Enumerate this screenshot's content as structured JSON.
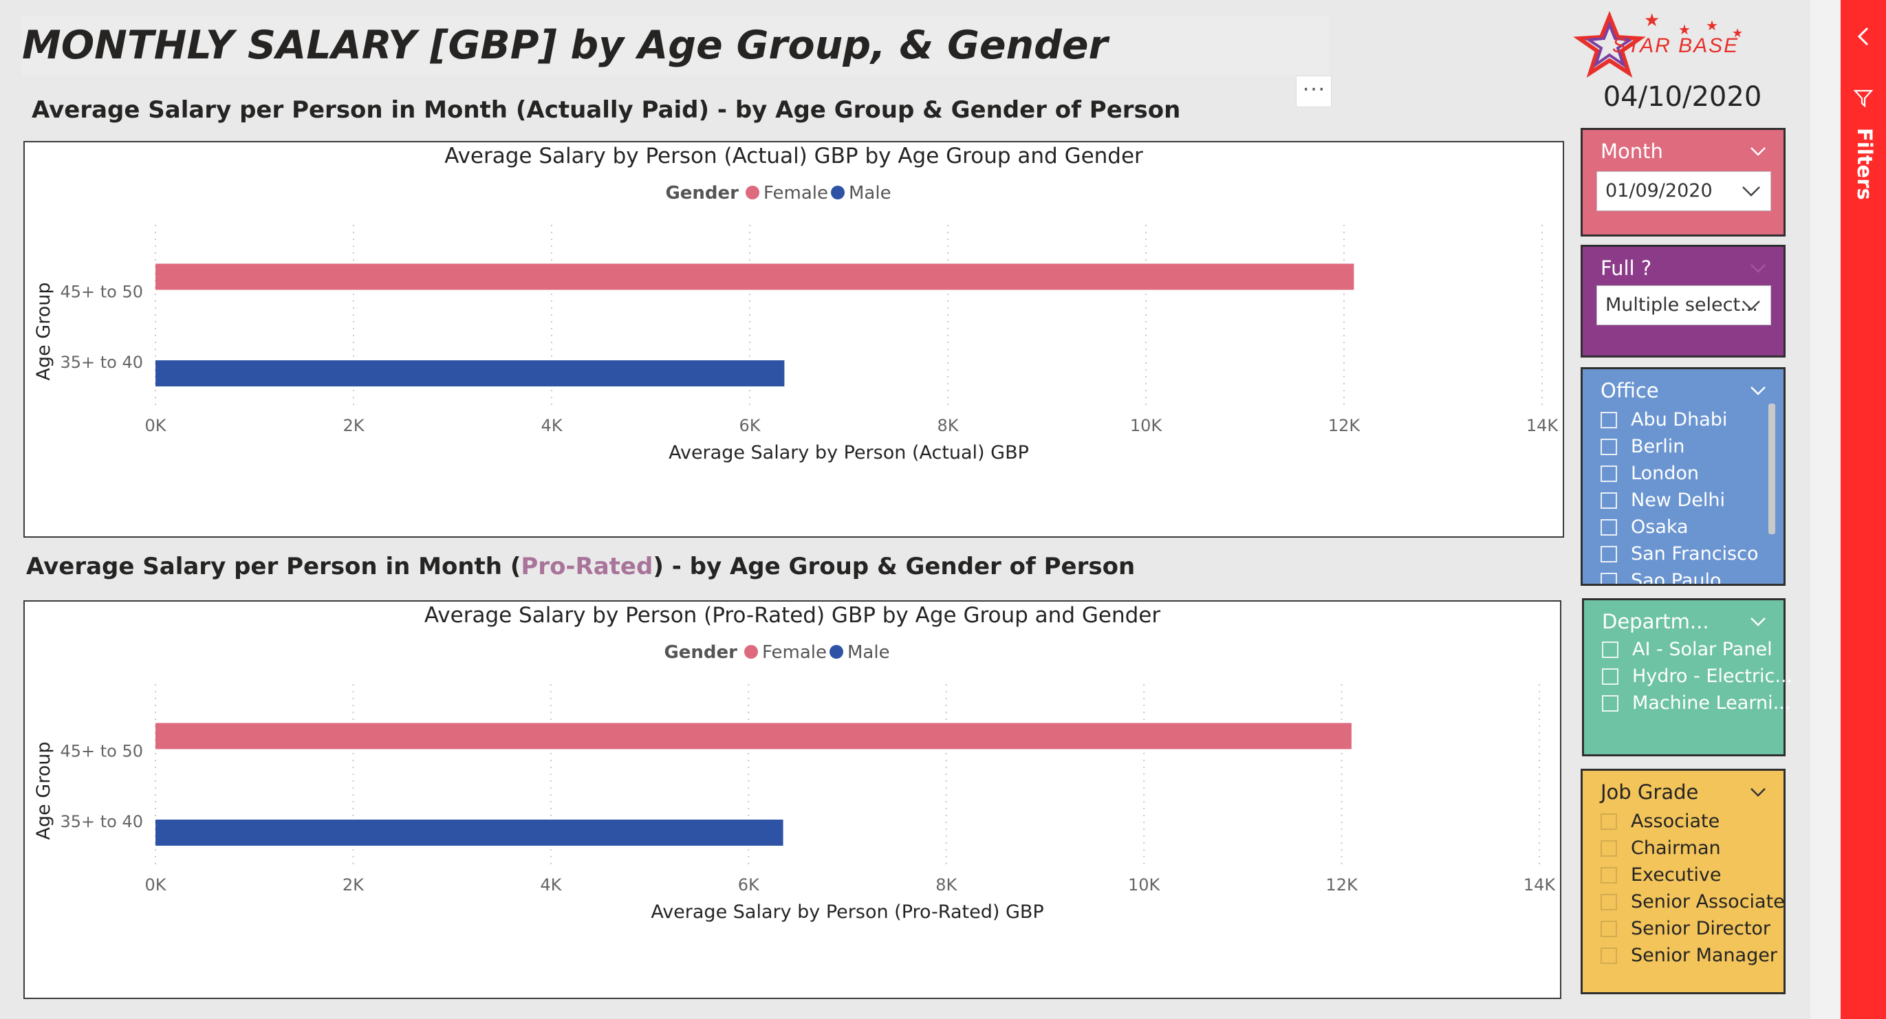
{
  "header": {
    "title": "MONTHLY SALARY [GBP] by Age Group, & Gender",
    "date": "04/10/2020",
    "logo_text": "STAR BASE",
    "more_options": "···"
  },
  "section1": {
    "title": "Average Salary per Person in Month (Actually Paid) - by Age Group & Gender of Person"
  },
  "section2": {
    "title_prefix": "Average Salary per Person in Month (",
    "title_highlight": "Pro-Rated",
    "title_suffix": ") - by Age Group & Gender of Person"
  },
  "chart_data": [
    {
      "type": "bar",
      "orientation": "horizontal",
      "title": "Average Salary by Person (Actual) GBP by Age Group and Gender",
      "legend_title": "Gender",
      "legend_position": "top-center",
      "xlabel": "Average Salary by Person (Actual) GBP",
      "ylabel": "Age Group",
      "xlim": [
        0,
        14000
      ],
      "x_ticks": [
        "0K",
        "2K",
        "4K",
        "6K",
        "8K",
        "10K",
        "12K",
        "14K"
      ],
      "grid": "vertical dotted",
      "categories": [
        "45+ to 50",
        "35+ to 40"
      ],
      "series": [
        {
          "name": "Female",
          "color": "#de6a7e",
          "values": [
            12100,
            null
          ]
        },
        {
          "name": "Male",
          "color": "#2e53a5",
          "values": [
            null,
            6350
          ]
        }
      ]
    },
    {
      "type": "bar",
      "orientation": "horizontal",
      "title": "Average Salary by Person (Pro-Rated) GBP by Age Group and Gender",
      "legend_title": "Gender",
      "legend_position": "top-center",
      "xlabel": "Average Salary by Person (Pro-Rated) GBP",
      "ylabel": "Age Group",
      "xlim": [
        0,
        14000
      ],
      "x_ticks": [
        "0K",
        "2K",
        "4K",
        "6K",
        "8K",
        "10K",
        "12K",
        "14K"
      ],
      "grid": "vertical dotted",
      "categories": [
        "45+ to 50",
        "35+ to 40"
      ],
      "series": [
        {
          "name": "Female",
          "color": "#de6a7e",
          "values": [
            12100,
            null
          ]
        },
        {
          "name": "Male",
          "color": "#2e53a5",
          "values": [
            null,
            6350
          ]
        }
      ]
    }
  ],
  "slicers": {
    "month": {
      "label": "Month",
      "value": "01/09/2020",
      "color": "#df6b7f"
    },
    "full": {
      "label": "Full ?",
      "value": "Multiple select...",
      "color": "#8c3b88"
    },
    "office": {
      "label": "Office",
      "color": "#6b95d1",
      "items": [
        "Abu Dhabi",
        "Berlin",
        "London",
        "New Delhi",
        "Osaka",
        "San Francisco",
        "Sao Paulo"
      ]
    },
    "department": {
      "label": "Departm...",
      "color": "#6ec3a4",
      "items": [
        "AI - Solar Panel",
        "Hydro - Electric...",
        "Machine Learni..."
      ]
    },
    "job_grade": {
      "label": "Job Grade",
      "color": "#f2c45a",
      "items": [
        "Associate",
        "Chairman",
        "Executive",
        "Senior Associate",
        "Senior Director",
        "Senior Manager"
      ]
    }
  },
  "filters_pane": {
    "label": "Filters"
  }
}
